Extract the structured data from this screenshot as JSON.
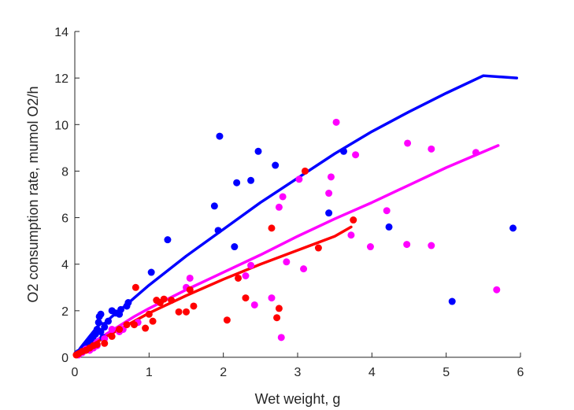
{
  "chart_data": {
    "type": "scatter",
    "xlabel": "Wet weight, g",
    "ylabel": "O2 consumption rate, mumol O2/h",
    "xlim": [
      0,
      6
    ],
    "ylim": [
      0,
      14
    ],
    "xticks": [
      0,
      1,
      2,
      3,
      4,
      5,
      6
    ],
    "yticks": [
      0,
      2,
      4,
      6,
      8,
      10,
      12,
      14
    ],
    "grid": false,
    "legend": "none",
    "series": [
      {
        "color": "#0000ff",
        "points": [
          [
            0.03,
            0.15
          ],
          [
            0.05,
            0.2
          ],
          [
            0.08,
            0.25
          ],
          [
            0.1,
            0.35
          ],
          [
            0.12,
            0.4
          ],
          [
            0.15,
            0.5
          ],
          [
            0.18,
            0.6
          ],
          [
            0.2,
            0.7
          ],
          [
            0.22,
            0.8
          ],
          [
            0.25,
            0.9
          ],
          [
            0.28,
            1.0
          ],
          [
            0.3,
            1.2
          ],
          [
            0.32,
            1.5
          ],
          [
            0.33,
            1.75
          ],
          [
            0.35,
            1.85
          ],
          [
            0.35,
            1.1
          ],
          [
            0.38,
            0.85
          ],
          [
            0.4,
            1.3
          ],
          [
            0.45,
            1.55
          ],
          [
            0.5,
            2.0
          ],
          [
            0.55,
            1.9
          ],
          [
            0.6,
            1.85
          ],
          [
            0.62,
            2.05
          ],
          [
            0.7,
            2.2
          ],
          [
            0.72,
            2.35
          ],
          [
            1.03,
            3.65
          ],
          [
            1.25,
            5.05
          ],
          [
            1.88,
            6.5
          ],
          [
            1.93,
            5.45
          ],
          [
            1.95,
            9.5
          ],
          [
            2.15,
            4.75
          ],
          [
            2.18,
            7.5
          ],
          [
            2.37,
            7.6
          ],
          [
            2.47,
            8.85
          ],
          [
            2.7,
            8.25
          ],
          [
            3.42,
            6.2
          ],
          [
            3.62,
            8.85
          ],
          [
            4.23,
            5.6
          ],
          [
            5.08,
            2.4
          ],
          [
            5.9,
            5.55
          ]
        ],
        "fit": [
          [
            0.02,
            0.15
          ],
          [
            0.1,
            0.5
          ],
          [
            0.2,
            0.9
          ],
          [
            0.3,
            1.3
          ],
          [
            0.35,
            1.45
          ],
          [
            0.4,
            1.45
          ],
          [
            0.5,
            1.75
          ],
          [
            0.6,
            2.0
          ],
          [
            0.8,
            2.55
          ],
          [
            1.0,
            3.1
          ],
          [
            1.5,
            4.35
          ],
          [
            2.0,
            5.5
          ],
          [
            2.5,
            6.65
          ],
          [
            3.0,
            7.7
          ],
          [
            3.5,
            8.75
          ],
          [
            4.0,
            9.7
          ],
          [
            4.5,
            10.55
          ],
          [
            5.0,
            11.35
          ],
          [
            5.5,
            12.1
          ],
          [
            5.95,
            12.0
          ]
        ]
      },
      {
        "color": "#ff00ff",
        "points": [
          [
            0.05,
            0.1
          ],
          [
            0.1,
            0.2
          ],
          [
            0.15,
            0.35
          ],
          [
            0.2,
            0.3
          ],
          [
            0.25,
            0.4
          ],
          [
            0.3,
            0.5
          ],
          [
            0.4,
            0.8
          ],
          [
            0.5,
            1.2
          ],
          [
            0.6,
            1.1
          ],
          [
            0.65,
            1.2
          ],
          [
            0.85,
            1.5
          ],
          [
            1.5,
            3.0
          ],
          [
            1.55,
            3.4
          ],
          [
            2.3,
            3.5
          ],
          [
            2.37,
            3.95
          ],
          [
            2.42,
            2.25
          ],
          [
            2.65,
            2.55
          ],
          [
            2.75,
            6.45
          ],
          [
            2.78,
            0.85
          ],
          [
            2.8,
            6.9
          ],
          [
            2.85,
            4.1
          ],
          [
            3.02,
            7.65
          ],
          [
            3.08,
            3.8
          ],
          [
            3.42,
            7.05
          ],
          [
            3.45,
            7.75
          ],
          [
            3.52,
            10.1
          ],
          [
            3.72,
            5.25
          ],
          [
            3.78,
            8.7
          ],
          [
            3.98,
            4.75
          ],
          [
            4.2,
            6.3
          ],
          [
            4.47,
            4.85
          ],
          [
            4.48,
            9.2
          ],
          [
            4.8,
            8.95
          ],
          [
            4.8,
            4.8
          ],
          [
            5.4,
            8.8
          ],
          [
            5.68,
            2.9
          ]
        ],
        "fit": [
          [
            0.02,
            0.1
          ],
          [
            0.2,
            0.55
          ],
          [
            0.4,
            0.95
          ],
          [
            0.6,
            1.35
          ],
          [
            0.8,
            1.75
          ],
          [
            1.0,
            2.1
          ],
          [
            1.5,
            2.9
          ],
          [
            2.0,
            3.65
          ],
          [
            2.5,
            4.4
          ],
          [
            3.0,
            5.2
          ],
          [
            3.5,
            5.95
          ],
          [
            4.0,
            6.65
          ],
          [
            4.5,
            7.4
          ],
          [
            5.0,
            8.15
          ],
          [
            5.7,
            9.1
          ]
        ]
      },
      {
        "color": "#ff0000",
        "points": [
          [
            0.02,
            0.1
          ],
          [
            0.05,
            0.15
          ],
          [
            0.1,
            0.25
          ],
          [
            0.15,
            0.3
          ],
          [
            0.2,
            0.4
          ],
          [
            0.25,
            0.5
          ],
          [
            0.3,
            0.55
          ],
          [
            0.4,
            0.6
          ],
          [
            0.5,
            0.9
          ],
          [
            0.6,
            1.2
          ],
          [
            0.7,
            1.4
          ],
          [
            0.8,
            1.4
          ],
          [
            0.82,
            3.0
          ],
          [
            0.95,
            1.25
          ],
          [
            1.0,
            1.85
          ],
          [
            1.05,
            1.55
          ],
          [
            1.1,
            2.45
          ],
          [
            1.15,
            2.35
          ],
          [
            1.2,
            2.5
          ],
          [
            1.3,
            2.45
          ],
          [
            1.4,
            1.95
          ],
          [
            1.5,
            1.95
          ],
          [
            1.55,
            2.9
          ],
          [
            1.6,
            2.2
          ],
          [
            2.05,
            1.6
          ],
          [
            2.2,
            3.4
          ],
          [
            2.3,
            2.55
          ],
          [
            2.65,
            5.55
          ],
          [
            2.72,
            1.7
          ],
          [
            2.75,
            2.1
          ],
          [
            3.1,
            8.0
          ],
          [
            3.28,
            4.7
          ],
          [
            3.75,
            5.9
          ]
        ],
        "fit": [
          [
            0.02,
            0.1
          ],
          [
            0.2,
            0.45
          ],
          [
            0.4,
            0.85
          ],
          [
            0.6,
            1.2
          ],
          [
            0.8,
            1.55
          ],
          [
            1.0,
            1.9
          ],
          [
            1.5,
            2.65
          ],
          [
            2.0,
            3.35
          ],
          [
            2.5,
            4.0
          ],
          [
            3.0,
            4.6
          ],
          [
            3.5,
            5.2
          ],
          [
            3.72,
            5.6
          ]
        ]
      }
    ]
  }
}
